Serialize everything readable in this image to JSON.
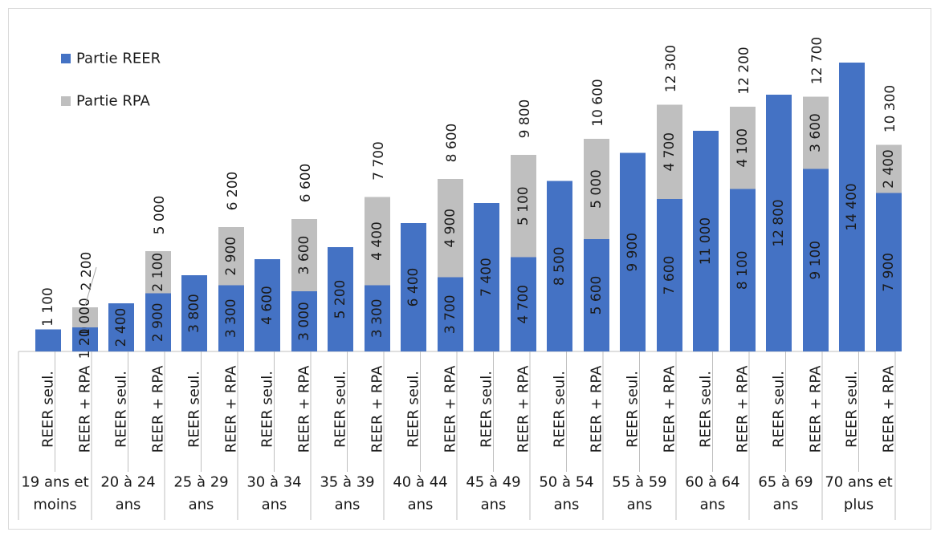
{
  "chart_data": {
    "type": "bar",
    "stacked": true,
    "title": "",
    "xlabel": "",
    "ylabel": "",
    "ylim": [
      0,
      15000
    ],
    "grid": false,
    "legend_position": "top-left",
    "colors": {
      "reer": "#4472c4",
      "rpa": "#bfbfbf"
    },
    "series": [
      {
        "name": "Partie REER",
        "color": "#4472c4"
      },
      {
        "name": "Partie RPA",
        "color": "#bfbfbf"
      }
    ],
    "groups": [
      {
        "label": [
          "19 ans et",
          "moins"
        ],
        "bars": [
          {
            "label": "REER seul.",
            "reer": 1100,
            "reer_label": "1 100",
            "rpa": 0,
            "rpa_label": "",
            "total_label": ""
          },
          {
            "label": "REER + RPA",
            "reer": 1200,
            "reer_label": "1 200",
            "rpa": 1000,
            "rpa_label": "1 000",
            "total_label": "2 200"
          }
        ]
      },
      {
        "label": [
          "20 à 24",
          "ans"
        ],
        "bars": [
          {
            "label": "REER seul.",
            "reer": 2400,
            "reer_label": "2 400",
            "rpa": 0,
            "rpa_label": "",
            "total_label": ""
          },
          {
            "label": "REER + RPA",
            "reer": 2900,
            "reer_label": "2 900",
            "rpa": 2100,
            "rpa_label": "2 100",
            "total_label": "5 000"
          }
        ]
      },
      {
        "label": [
          "25 à 29",
          "ans"
        ],
        "bars": [
          {
            "label": "REER seul.",
            "reer": 3800,
            "reer_label": "3 800",
            "rpa": 0,
            "rpa_label": "",
            "total_label": ""
          },
          {
            "label": "REER + RPA",
            "reer": 3300,
            "reer_label": "3 300",
            "rpa": 2900,
            "rpa_label": "2 900",
            "total_label": "6 200"
          }
        ]
      },
      {
        "label": [
          "30 à 34",
          "ans"
        ],
        "bars": [
          {
            "label": "REER seul.",
            "reer": 4600,
            "reer_label": "4 600",
            "rpa": 0,
            "rpa_label": "",
            "total_label": ""
          },
          {
            "label": "REER + RPA",
            "reer": 3000,
            "reer_label": "3 000",
            "rpa": 3600,
            "rpa_label": "3 600",
            "total_label": "6 600"
          }
        ]
      },
      {
        "label": [
          "35 à 39",
          "ans"
        ],
        "bars": [
          {
            "label": "REER seul.",
            "reer": 5200,
            "reer_label": "5 200",
            "rpa": 0,
            "rpa_label": "",
            "total_label": ""
          },
          {
            "label": "REER + RPA",
            "reer": 3300,
            "reer_label": "3 300",
            "rpa": 4400,
            "rpa_label": "4 400",
            "total_label": "7 700"
          }
        ]
      },
      {
        "label": [
          "40 à 44",
          "ans"
        ],
        "bars": [
          {
            "label": "REER seul.",
            "reer": 6400,
            "reer_label": "6 400",
            "rpa": 0,
            "rpa_label": "",
            "total_label": ""
          },
          {
            "label": "REER + RPA",
            "reer": 3700,
            "reer_label": "3 700",
            "rpa": 4900,
            "rpa_label": "4 900",
            "total_label": "8 600"
          }
        ]
      },
      {
        "label": [
          "45 à 49",
          "ans"
        ],
        "bars": [
          {
            "label": "REER seul.",
            "reer": 7400,
            "reer_label": "7 400",
            "rpa": 0,
            "rpa_label": "",
            "total_label": ""
          },
          {
            "label": "REER + RPA",
            "reer": 4700,
            "reer_label": "4 700",
            "rpa": 5100,
            "rpa_label": "5 100",
            "total_label": "9 800"
          }
        ]
      },
      {
        "label": [
          "50 à 54",
          "ans"
        ],
        "bars": [
          {
            "label": "REER seul.",
            "reer": 8500,
            "reer_label": "8 500",
            "rpa": 0,
            "rpa_label": "",
            "total_label": ""
          },
          {
            "label": "REER + RPA",
            "reer": 5600,
            "reer_label": "5 600",
            "rpa": 5000,
            "rpa_label": "5 000",
            "total_label": "10 600"
          }
        ]
      },
      {
        "label": [
          "55 à 59",
          "ans"
        ],
        "bars": [
          {
            "label": "REER seul.",
            "reer": 9900,
            "reer_label": "9 900",
            "rpa": 0,
            "rpa_label": "",
            "total_label": ""
          },
          {
            "label": "REER + RPA",
            "reer": 7600,
            "reer_label": "7 600",
            "rpa": 4700,
            "rpa_label": "4 700",
            "total_label": "12 300"
          }
        ]
      },
      {
        "label": [
          "60 à 64",
          "ans"
        ],
        "bars": [
          {
            "label": "REER seul.",
            "reer": 11000,
            "reer_label": "11 000",
            "rpa": 0,
            "rpa_label": "",
            "total_label": ""
          },
          {
            "label": "REER + RPA",
            "reer": 8100,
            "reer_label": "8 100",
            "rpa": 4100,
            "rpa_label": "4 100",
            "total_label": "12 200"
          }
        ]
      },
      {
        "label": [
          "65 à 69",
          "ans"
        ],
        "bars": [
          {
            "label": "REER seul.",
            "reer": 12800,
            "reer_label": "12 800",
            "rpa": 0,
            "rpa_label": "",
            "total_label": ""
          },
          {
            "label": "REER + RPA",
            "reer": 9100,
            "reer_label": "9 100",
            "rpa": 3600,
            "rpa_label": "3 600",
            "total_label": "12 700"
          }
        ]
      },
      {
        "label": [
          "70 ans et",
          "plus"
        ],
        "bars": [
          {
            "label": "REER seul.",
            "reer": 14400,
            "reer_label": "14 400",
            "rpa": 0,
            "rpa_label": "",
            "total_label": ""
          },
          {
            "label": "REER + RPA",
            "reer": 7900,
            "reer_label": "7 900",
            "rpa": 2400,
            "rpa_label": "2 400",
            "total_label": "10 300"
          }
        ]
      }
    ]
  }
}
